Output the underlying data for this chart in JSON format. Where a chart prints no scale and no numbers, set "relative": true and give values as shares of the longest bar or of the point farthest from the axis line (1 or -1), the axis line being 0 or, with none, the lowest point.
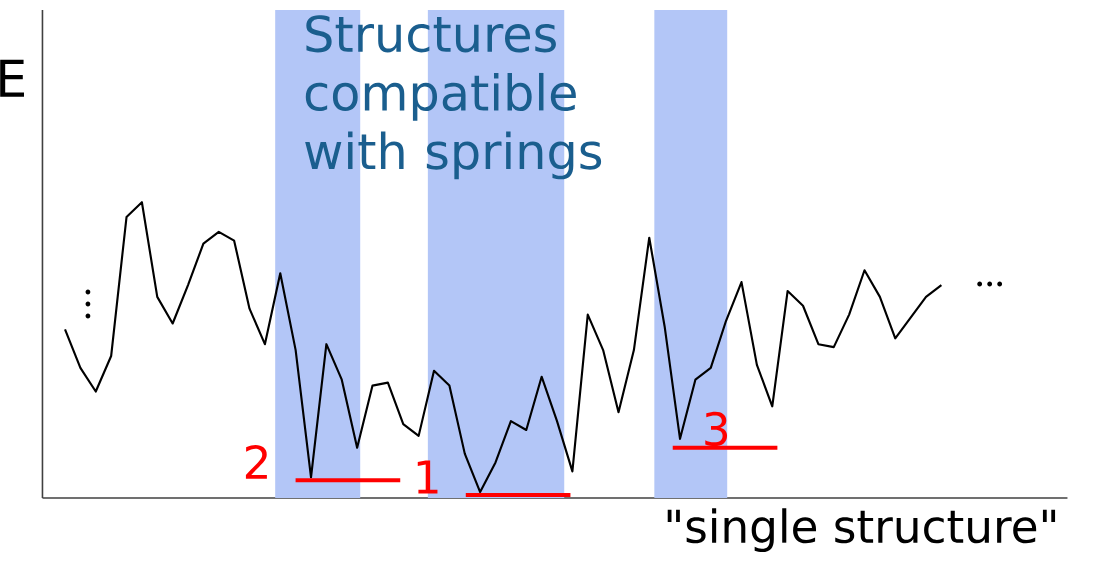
{
  "chart_data": {
    "type": "line",
    "title": "Structures compatible with springs",
    "xlabel": "\"single structure\"",
    "ylabel": "E",
    "relative": true,
    "categories": [
      null,
      null,
      null,
      null,
      null,
      null,
      null,
      null,
      null,
      null,
      null,
      null,
      null,
      null,
      null,
      null,
      null,
      null,
      null,
      null,
      null,
      null,
      null,
      null,
      null,
      null,
      null,
      null,
      null,
      null,
      null,
      null,
      null,
      null,
      null,
      null,
      null,
      null,
      null,
      null,
      null,
      null,
      null,
      null,
      null,
      null,
      null,
      null,
      null,
      null,
      null,
      null,
      null,
      null,
      null,
      null,
      null,
      null
    ],
    "series": [
      {
        "color": "#000000",
        "values": [
          0.57,
          0.44,
          0.36,
          0.48,
          0.95,
          1.0,
          0.68,
          0.59,
          0.72,
          0.86,
          0.9,
          0.87,
          0.64,
          0.52,
          0.76,
          0.5,
          0.07,
          0.52,
          0.4,
          0.17,
          0.38,
          0.39,
          0.25,
          0.21,
          0.43,
          0.38,
          0.15,
          0.02,
          0.12,
          0.26,
          0.23,
          0.41,
          0.26,
          0.09,
          0.62,
          0.5,
          0.29,
          0.5,
          0.88,
          0.58,
          0.2,
          0.4,
          0.44,
          0.6,
          0.73,
          0.45,
          0.31,
          0.7,
          0.65,
          0.52,
          0.51,
          0.62,
          0.77,
          0.68,
          0.54,
          0.61,
          0.68,
          0.72
        ]
      }
    ],
    "annotations": [
      "2",
      "1",
      "3"
    ]
  }
}
